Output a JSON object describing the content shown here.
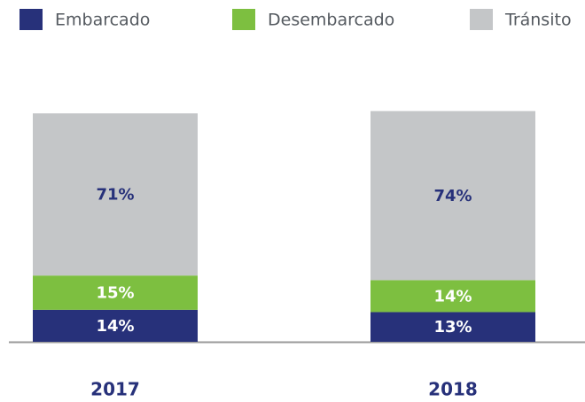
{
  "chart_data": {
    "type": "stacked_bar",
    "categories": [
      "2017",
      "2018"
    ],
    "series": [
      {
        "name": "Embarcado",
        "color": "#27317a",
        "label_color": "#ffffff",
        "values": [
          14,
          13
        ],
        "value_labels": [
          "14%",
          "13%"
        ]
      },
      {
        "name": "Desembarcado",
        "color": "#7dbf40",
        "label_color": "#ffffff",
        "values": [
          15,
          14
        ],
        "value_labels": [
          "15%",
          "14%"
        ]
      },
      {
        "name": "Tránsito",
        "color": "#c4c6c8",
        "label_color": "#27317a",
        "values": [
          71,
          74
        ],
        "value_labels": [
          "71%",
          "74%"
        ]
      }
    ]
  }
}
